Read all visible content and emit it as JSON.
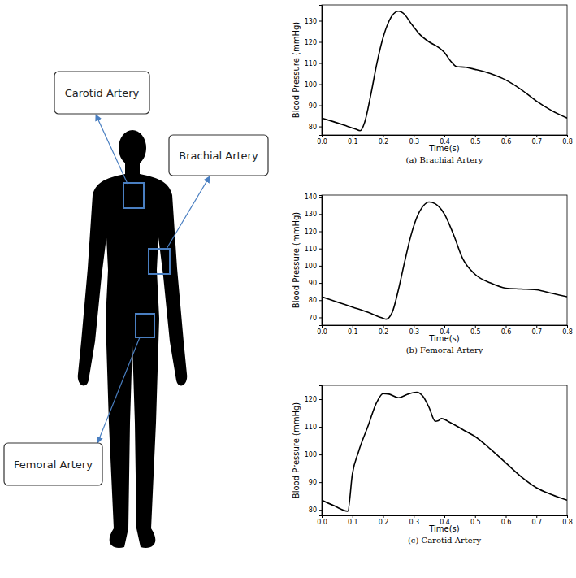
{
  "diagram": {
    "labels": [
      "Carotid Artery",
      "Brachial Artery",
      "Femoral Artery"
    ]
  },
  "chart_data": [
    {
      "type": "line",
      "title": "(a) Brachial Artery",
      "x_label": "Time(s)",
      "y_label": "Blood Pressure (mmHg)",
      "color": "#000000",
      "x": [
        0,
        0.04,
        0.08,
        0.11,
        0.125,
        0.14,
        0.16,
        0.18,
        0.2,
        0.22,
        0.24,
        0.25,
        0.27,
        0.29,
        0.32,
        0.35,
        0.38,
        0.4,
        0.42,
        0.44,
        0.47,
        0.5,
        0.55,
        0.6,
        0.65,
        0.7,
        0.75,
        0.8
      ],
      "values": [
        84,
        82.2,
        80.3,
        78.8,
        78,
        82,
        95,
        110,
        122,
        130,
        134,
        134.5,
        133,
        129,
        123.5,
        120,
        117.5,
        115,
        111,
        108.3,
        108,
        107,
        105,
        102,
        97.5,
        92,
        87.5,
        84
      ],
      "xlim": [
        0,
        0.8
      ],
      "ylim": [
        76,
        137.5
      ],
      "xticks": [
        {
          "value": 0,
          "label": "0.0"
        },
        0.1,
        0.2,
        0.3,
        0.4,
        0.5,
        0.6,
        0.7,
        0.8
      ],
      "yticks": [
        80,
        90,
        100,
        110,
        120,
        130
      ]
    },
    {
      "type": "line",
      "title": "(b) Femoral Artery",
      "x_label": "Time(s)",
      "y_label": "Blood Pressure (mmHg)",
      "color": "#000000",
      "x": [
        0,
        0.05,
        0.1,
        0.15,
        0.2,
        0.21,
        0.23,
        0.25,
        0.27,
        0.29,
        0.31,
        0.33,
        0.35,
        0.37,
        0.4,
        0.43,
        0.46,
        0.5,
        0.55,
        0.6,
        0.65,
        0.7,
        0.75,
        0.8
      ],
      "values": [
        82,
        79,
        76,
        73,
        69.5,
        69,
        73,
        86,
        102,
        117,
        128,
        134.5,
        137,
        136,
        130,
        118,
        104,
        95,
        90,
        87,
        86.5,
        86,
        84,
        82
      ],
      "xlim": [
        0,
        0.8
      ],
      "ylim": [
        65.5,
        141
      ],
      "xticks": [
        {
          "value": 0,
          "label": "0.0"
        },
        0.1,
        0.2,
        0.3,
        0.4,
        0.5,
        0.6,
        0.7,
        0.8
      ],
      "yticks": [
        70,
        80,
        90,
        100,
        110,
        120,
        130,
        140
      ]
    },
    {
      "type": "line",
      "title": "(c) Carotid Artery",
      "x_label": "Time(s)",
      "y_label": "Blood Pressure (mmHg)",
      "color": "#000000",
      "x": [
        0,
        0.04,
        0.085,
        0.1,
        0.12,
        0.15,
        0.18,
        0.2,
        0.22,
        0.25,
        0.28,
        0.31,
        0.33,
        0.35,
        0.37,
        0.38,
        0.39,
        0.42,
        0.46,
        0.5,
        0.55,
        0.6,
        0.65,
        0.7,
        0.75,
        0.8
      ],
      "values": [
        83.5,
        81.5,
        79.5,
        93,
        101,
        110,
        119,
        122,
        121.8,
        120.5,
        121.8,
        122.5,
        121,
        117,
        112,
        112.2,
        113,
        111.5,
        109,
        106.5,
        102,
        97,
        92,
        88,
        85.5,
        83.5
      ],
      "xlim": [
        0,
        0.8
      ],
      "ylim": [
        78,
        125
      ],
      "xticks": [
        {
          "value": 0,
          "label": "0.0"
        },
        0.1,
        0.2,
        0.3,
        0.4,
        0.5,
        0.6,
        0.7,
        0.8
      ],
      "yticks": [
        80,
        90,
        100,
        110,
        120
      ]
    }
  ]
}
